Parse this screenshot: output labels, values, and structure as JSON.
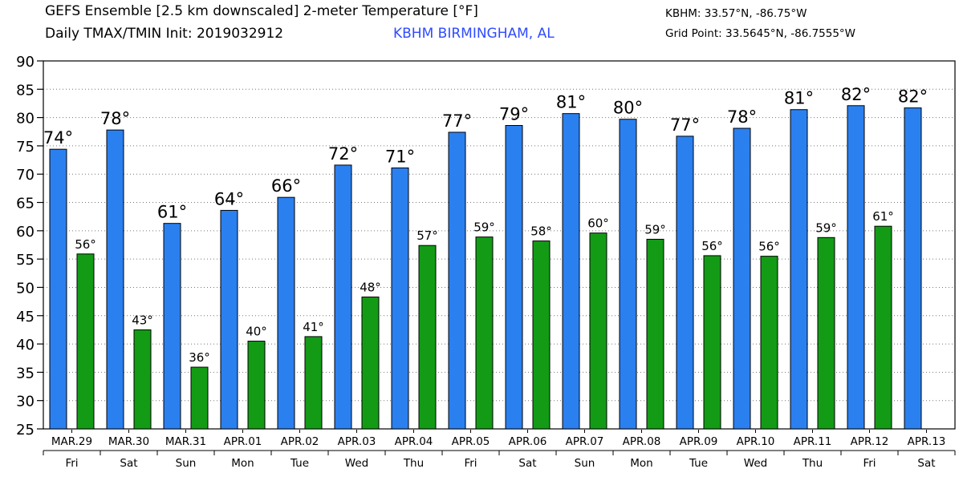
{
  "header": {
    "title": "GEFS Ensemble [2.5 km downscaled] 2-meter Temperature [°F]",
    "subtitle": "Daily TMAX/TMIN Init: 2019032912",
    "station": "KBHM BIRMINGHAM, AL",
    "station_color": "#2f4bff",
    "location": "KBHM: 33.57°N, -86.75°W",
    "grid_point": "Grid Point: 33.5645°N, -86.7555°W"
  },
  "chart_data": {
    "type": "bar",
    "title": "GEFS Ensemble [2.5 km downscaled] 2-meter Temperature [°F]",
    "categories": [
      "MAR.29",
      "MAR.30",
      "MAR.31",
      "APR.01",
      "APR.02",
      "APR.03",
      "APR.04",
      "APR.05",
      "APR.06",
      "APR.07",
      "APR.08",
      "APR.09",
      "APR.10",
      "APR.11",
      "APR.12",
      "APR.13"
    ],
    "weekdays": [
      "Fri",
      "Sat",
      "Sun",
      "Mon",
      "Tue",
      "Wed",
      "Thu",
      "Fri",
      "Sat",
      "Sun",
      "Mon",
      "Tue",
      "Wed",
      "Thu",
      "Fri",
      "Sat"
    ],
    "series": [
      {
        "key": "tmax",
        "color": "#2b80f0",
        "values": [
          74.4,
          77.8,
          61.3,
          63.6,
          65.9,
          71.6,
          71.1,
          77.4,
          78.6,
          80.7,
          79.7,
          76.7,
          78.1,
          81.4,
          82.1,
          81.7
        ],
        "labels": [
          "74°",
          "78°",
          "61°",
          "64°",
          "66°",
          "72°",
          "71°",
          "77°",
          "79°",
          "81°",
          "80°",
          "77°",
          "78°",
          "81°",
          "82°",
          "82°"
        ]
      },
      {
        "key": "tmin",
        "color": "#139b16",
        "values": [
          55.9,
          42.5,
          35.9,
          40.5,
          41.3,
          48.3,
          57.4,
          58.9,
          58.2,
          59.6,
          58.5,
          55.6,
          55.5,
          58.8,
          60.8,
          null
        ],
        "labels": [
          "56°",
          "43°",
          "36°",
          "40°",
          "41°",
          "48°",
          "57°",
          "59°",
          "58°",
          "60°",
          "59°",
          "56°",
          "56°",
          "59°",
          "61°",
          ""
        ]
      }
    ],
    "ylim": [
      25,
      90
    ],
    "yticks": [
      25,
      30,
      35,
      40,
      45,
      50,
      55,
      60,
      65,
      70,
      75,
      80,
      85,
      90
    ],
    "grid": "horizontal dotted",
    "legend": "none"
  }
}
